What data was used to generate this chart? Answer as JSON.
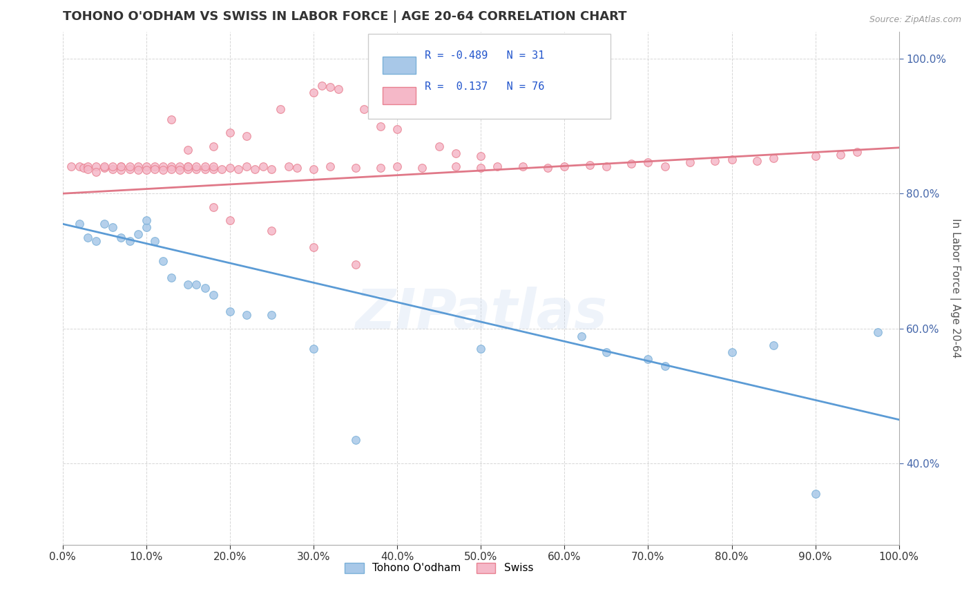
{
  "title": "TOHONO O'ODHAM VS SWISS IN LABOR FORCE | AGE 20-64 CORRELATION CHART",
  "source": "Source: ZipAtlas.com",
  "ylabel": "In Labor Force | Age 20-64",
  "x_min": 0.0,
  "x_max": 1.0,
  "y_min": 0.28,
  "y_max": 1.04,
  "blue_R": -0.489,
  "blue_N": 31,
  "pink_R": 0.137,
  "pink_N": 76,
  "blue_color": "#a8c8e8",
  "pink_color": "#f5b8c8",
  "blue_edge_color": "#7ab0d8",
  "pink_edge_color": "#e88090",
  "blue_line_color": "#5b9bd5",
  "pink_line_color": "#e07888",
  "legend_label_blue": "Tohono O'odham",
  "legend_label_pink": "Swiss",
  "watermark": "ZIPatlas",
  "title_fontsize": 13,
  "axis_label_fontsize": 11,
  "tick_fontsize": 11,
  "source_fontsize": 9,
  "blue_line_start_y": 0.755,
  "blue_line_end_y": 0.465,
  "pink_line_start_y": 0.8,
  "pink_line_end_y": 0.868
}
